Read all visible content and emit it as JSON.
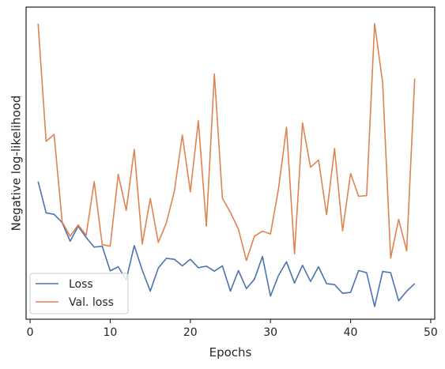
{
  "chart_data": {
    "type": "line",
    "title": "",
    "xlabel": "Epochs",
    "ylabel": "Negative log-likelihood",
    "xlim": [
      -0.5,
      50.5
    ],
    "ylim": [
      0.0,
      1.0
    ],
    "x_ticks": [
      0,
      10,
      20,
      30,
      40,
      50
    ],
    "y_ticks_labeled": false,
    "grid": false,
    "legend_position": "lower-left",
    "series": [
      {
        "name": "Loss",
        "color": "#4c72b0",
        "x": [
          1,
          2,
          3,
          4,
          5,
          6,
          7,
          8,
          9,
          10,
          11,
          12,
          13,
          14,
          15,
          16,
          17,
          18,
          19,
          20,
          21,
          22,
          23,
          24,
          25,
          26,
          27,
          28,
          29,
          30,
          31,
          32,
          33,
          34,
          35,
          36,
          37,
          38,
          39,
          40,
          41,
          42,
          43,
          44,
          45,
          46,
          47,
          48
        ],
        "y": [
          0.441,
          0.341,
          0.336,
          0.31,
          0.25,
          0.298,
          0.262,
          0.231,
          0.234,
          0.155,
          0.168,
          0.126,
          0.236,
          0.157,
          0.09,
          0.164,
          0.195,
          0.192,
          0.171,
          0.192,
          0.165,
          0.17,
          0.154,
          0.171,
          0.09,
          0.156,
          0.098,
          0.128,
          0.201,
          0.074,
          0.14,
          0.184,
          0.116,
          0.173,
          0.121,
          0.168,
          0.114,
          0.111,
          0.083,
          0.086,
          0.156,
          0.149,
          0.041,
          0.153,
          0.149,
          0.059,
          0.09,
          0.114
        ]
      },
      {
        "name": "Val. loss",
        "color": "#dd8452",
        "x": [
          1,
          2,
          3,
          4,
          5,
          6,
          7,
          8,
          9,
          10,
          11,
          12,
          13,
          14,
          15,
          16,
          17,
          18,
          19,
          20,
          21,
          22,
          23,
          24,
          25,
          26,
          27,
          28,
          29,
          30,
          31,
          32,
          33,
          34,
          35,
          36,
          37,
          38,
          39,
          40,
          41,
          42,
          43,
          44,
          45,
          46,
          47,
          48
        ],
        "y": [
          0.947,
          0.57,
          0.592,
          0.312,
          0.266,
          0.302,
          0.269,
          0.441,
          0.239,
          0.234,
          0.464,
          0.349,
          0.544,
          0.241,
          0.387,
          0.246,
          0.308,
          0.409,
          0.59,
          0.408,
          0.636,
          0.298,
          0.786,
          0.388,
          0.342,
          0.289,
          0.188,
          0.266,
          0.282,
          0.273,
          0.417,
          0.615,
          0.21,
          0.629,
          0.487,
          0.51,
          0.335,
          0.547,
          0.283,
          0.467,
          0.394,
          0.396,
          0.947,
          0.758,
          0.196,
          0.32,
          0.219,
          0.771
        ]
      }
    ]
  }
}
